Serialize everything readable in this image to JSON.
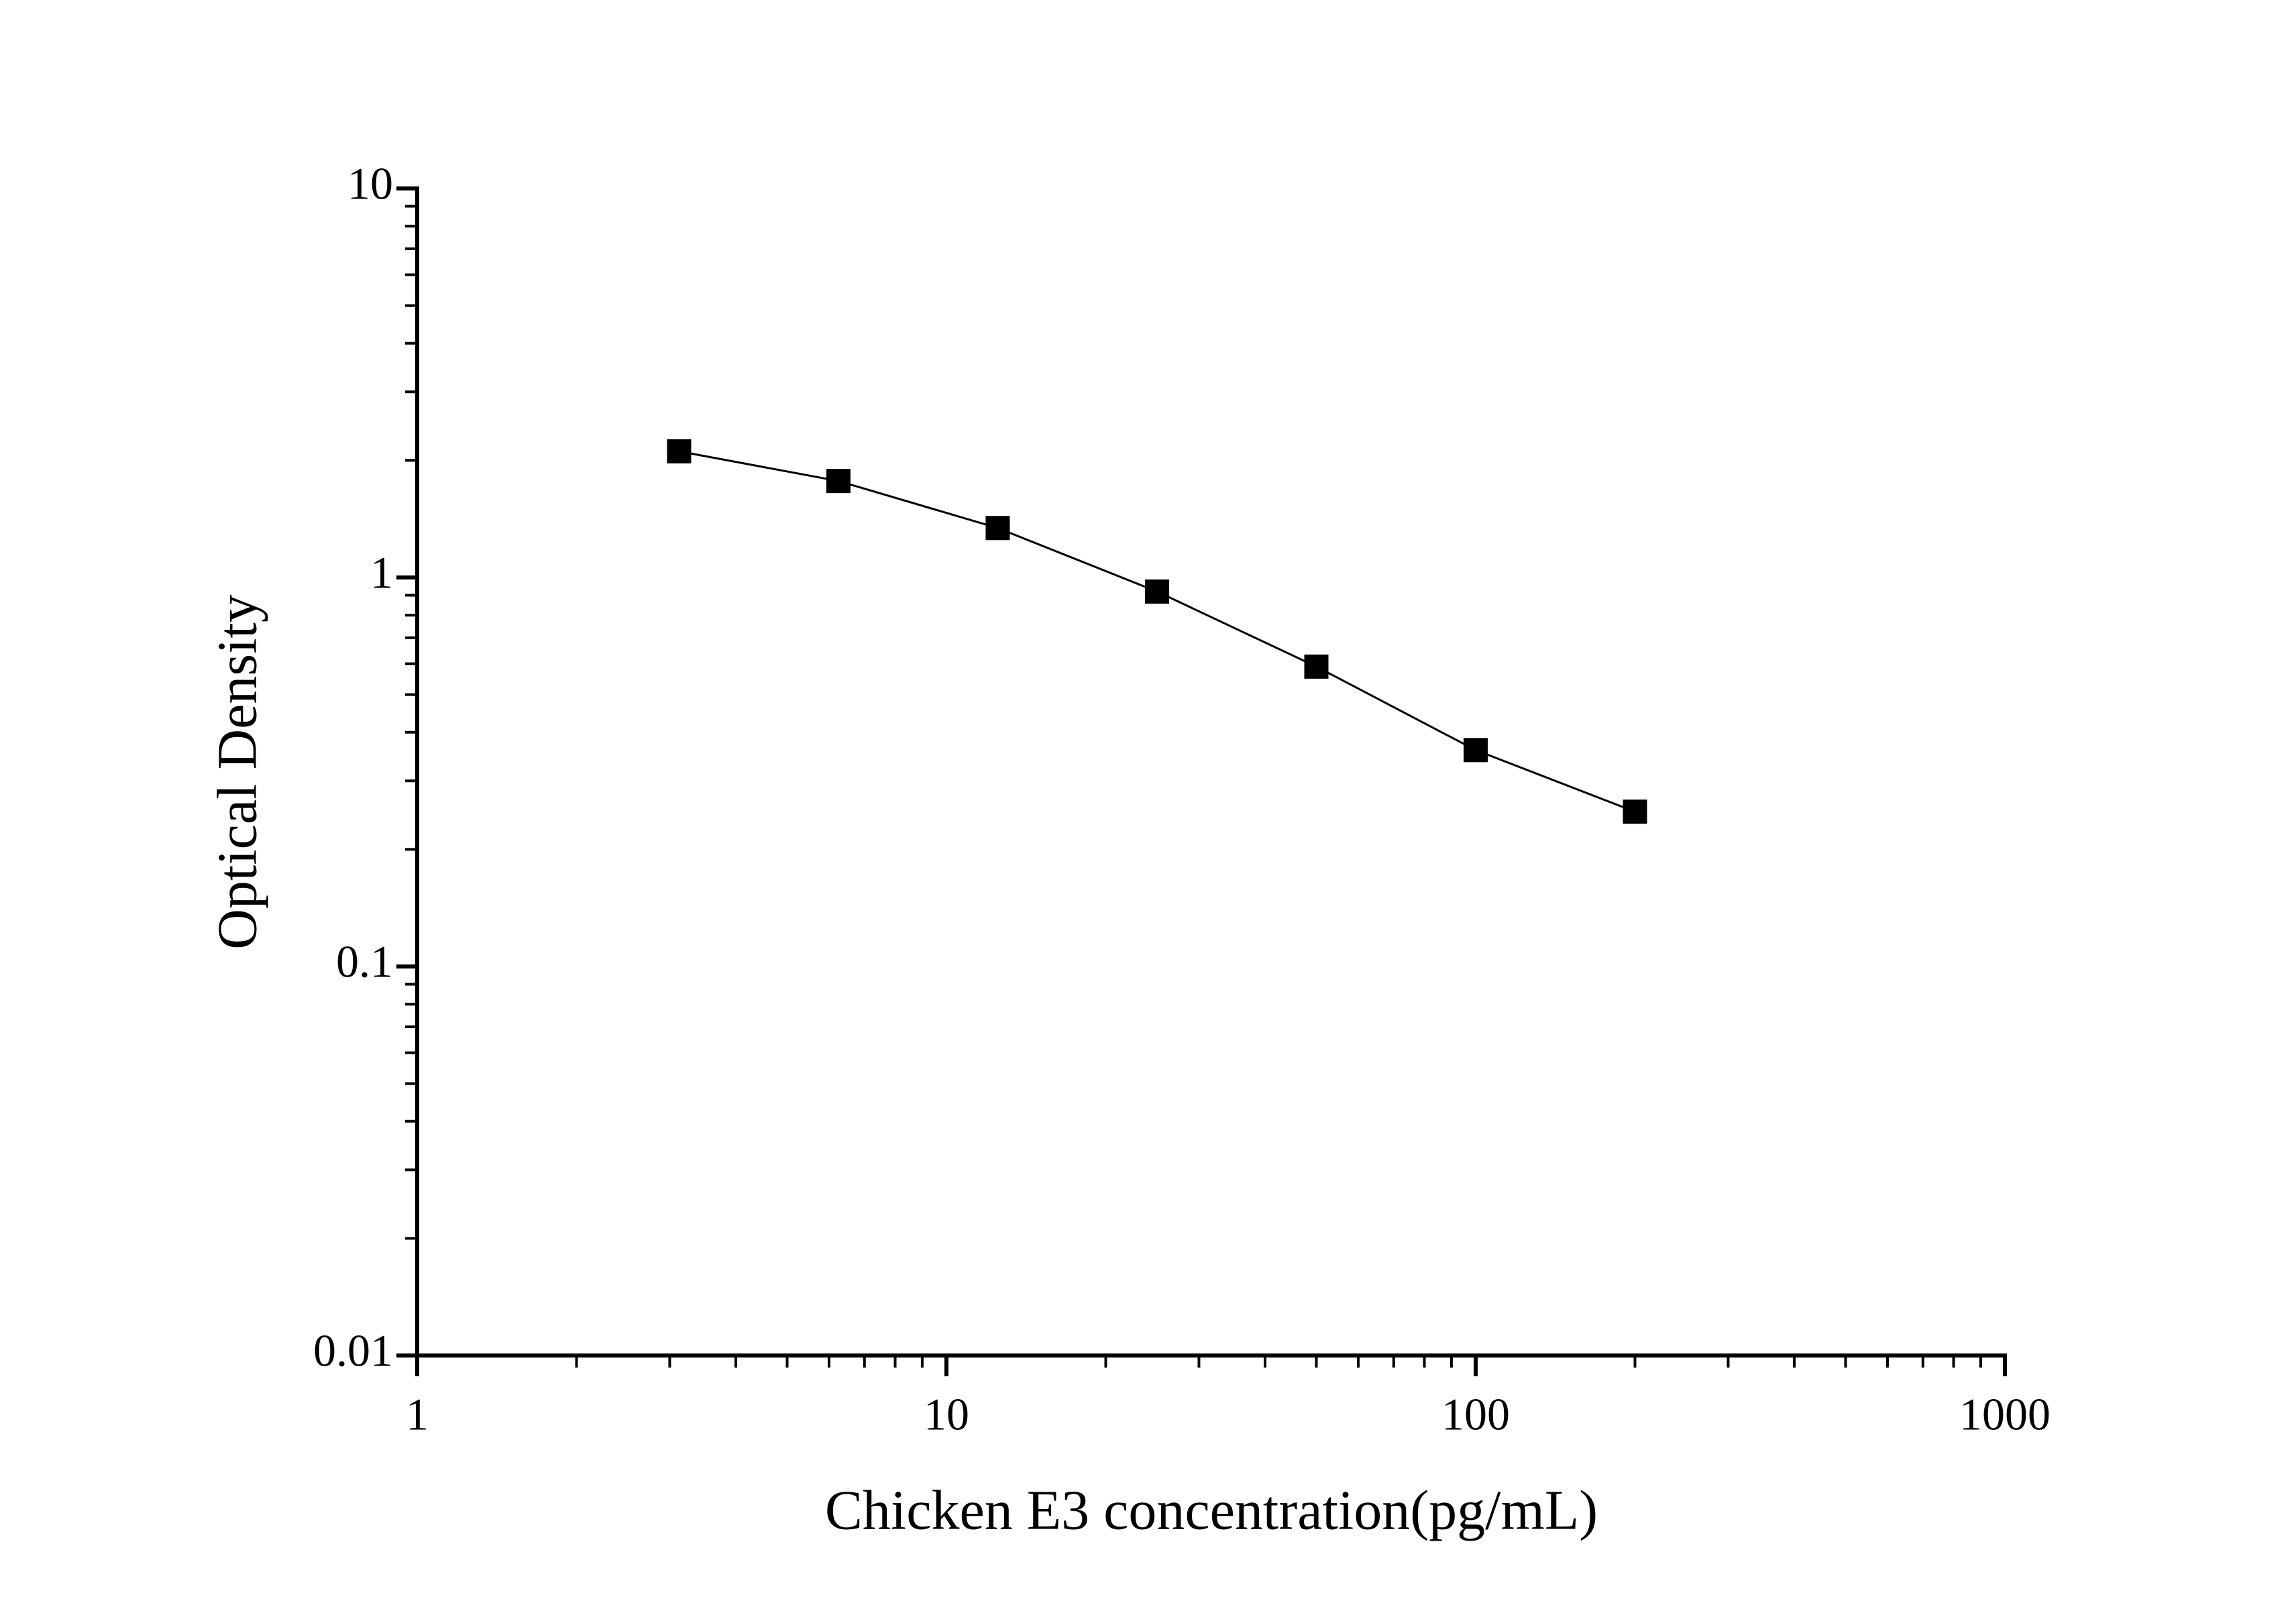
{
  "chart_data": {
    "type": "line",
    "x_label": "Chicken E3 concentration(pg/mL)",
    "y_label": "Optical Density",
    "x": [
      3.125,
      6.25,
      12.5,
      25,
      50,
      100,
      200
    ],
    "values": [
      2.11,
      1.77,
      1.34,
      0.92,
      0.59,
      0.36,
      0.25
    ],
    "color": "#000000",
    "marker": "square",
    "x_log": true,
    "y_log": true,
    "xlim": [
      1,
      1000
    ],
    "ylim": [
      0.01,
      10
    ],
    "xticks": [
      1,
      10,
      100,
      1000
    ],
    "yticks": [
      0.01,
      0.1,
      1,
      10
    ],
    "x_minor_ticks": [
      2,
      3,
      4,
      5,
      6,
      7,
      8,
      9,
      20,
      30,
      40,
      50,
      60,
      70,
      80,
      90,
      200,
      300,
      400,
      500,
      600,
      700,
      800,
      900
    ],
    "y_minor_ticks": [
      0.02,
      0.03,
      0.04,
      0.05,
      0.06,
      0.07,
      0.08,
      0.09,
      0.2,
      0.3,
      0.4,
      0.5,
      0.6,
      0.7,
      0.8,
      0.9,
      2,
      3,
      4,
      5,
      6,
      7,
      8,
      9
    ],
    "grid": false
  }
}
